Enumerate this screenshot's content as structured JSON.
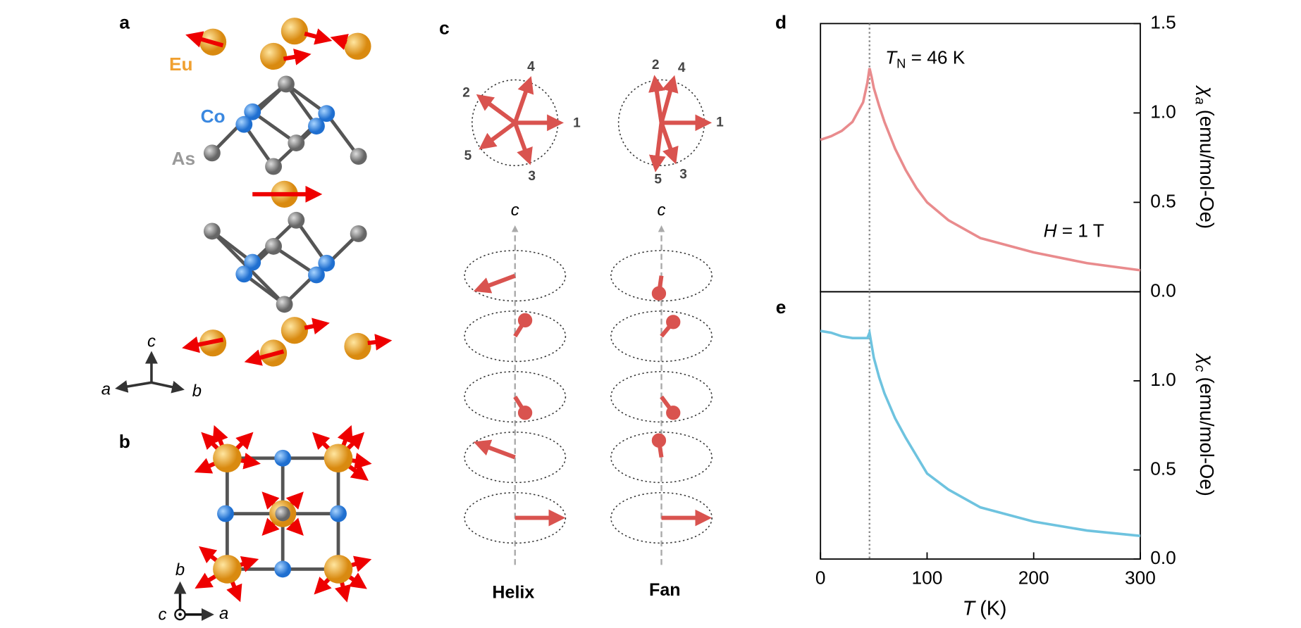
{
  "panels": {
    "a": "a",
    "b": "b",
    "c": "c",
    "d": "d",
    "e": "e"
  },
  "diagram_a": {
    "eu": "Eu",
    "co": "Co",
    "as": "As",
    "axis_c": "c",
    "axis_a": "a",
    "axis_b": "b"
  },
  "diagram_b": {
    "axis_b": "b",
    "axis_c": "c",
    "axis_a": "a"
  },
  "diagram_c": {
    "helix_numbers": [
      "1",
      "2",
      "3",
      "4",
      "5"
    ],
    "fan_numbers": [
      "1",
      "2",
      "3",
      "4",
      "5"
    ],
    "helix_axis": "c",
    "fan_axis": "c",
    "helix": "Helix",
    "fan": "Fan"
  },
  "chart_data": [
    {
      "type": "line",
      "ylabel": {
        "symbol": "χ",
        "subscript": "a",
        "text": "(emu/mol-Oe)"
      },
      "annotations": [
        {
          "symbol": "T",
          "subscript": "N",
          "text": "= 46 K"
        },
        {
          "symbol": "H",
          "text": "= 1 T"
        }
      ],
      "vline": 46,
      "xlim": [
        0,
        300
      ],
      "ylim": [
        0,
        1.5
      ],
      "yticks": [
        {
          "value": 0,
          "label": "0.0"
        },
        {
          "value": 0.5,
          "label": "0.5"
        },
        {
          "value": 1,
          "label": "1.0"
        },
        {
          "value": 1.5,
          "label": "1.5"
        }
      ],
      "x": [
        0,
        10,
        20,
        30,
        40,
        44,
        46,
        48,
        50,
        55,
        60,
        70,
        80,
        90,
        100,
        120,
        150,
        200,
        250,
        300
      ],
      "series": [
        {
          "color": "#e98b8d",
          "values": [
            0.85,
            0.87,
            0.9,
            0.95,
            1.06,
            1.17,
            1.25,
            1.2,
            1.14,
            1.04,
            0.95,
            0.8,
            0.68,
            0.58,
            0.5,
            0.4,
            0.3,
            0.22,
            0.16,
            0.12
          ]
        }
      ]
    },
    {
      "type": "line",
      "ylabel": {
        "symbol": "χ",
        "subscript": "c",
        "text": "(emu/mol-Oe)"
      },
      "xlabel": {
        "symbol": "T",
        "text": "(K)"
      },
      "vline": 46,
      "xlim": [
        0,
        300
      ],
      "ylim": [
        0,
        1.5
      ],
      "xticks": [
        0,
        100,
        200,
        300
      ],
      "yticks": [
        {
          "value": 0,
          "label": "0.0"
        },
        {
          "value": 0.5,
          "label": "0.5"
        },
        {
          "value": 1,
          "label": "1.0"
        }
      ],
      "x": [
        0,
        10,
        20,
        30,
        40,
        44,
        46,
        48,
        50,
        55,
        60,
        70,
        80,
        90,
        100,
        120,
        150,
        200,
        250,
        300
      ],
      "series": [
        {
          "color": "#6ec3df",
          "values": [
            1.28,
            1.27,
            1.25,
            1.24,
            1.24,
            1.24,
            1.27,
            1.2,
            1.13,
            1.02,
            0.93,
            0.79,
            0.68,
            0.58,
            0.48,
            0.39,
            0.29,
            0.21,
            0.16,
            0.13
          ]
        }
      ]
    }
  ]
}
